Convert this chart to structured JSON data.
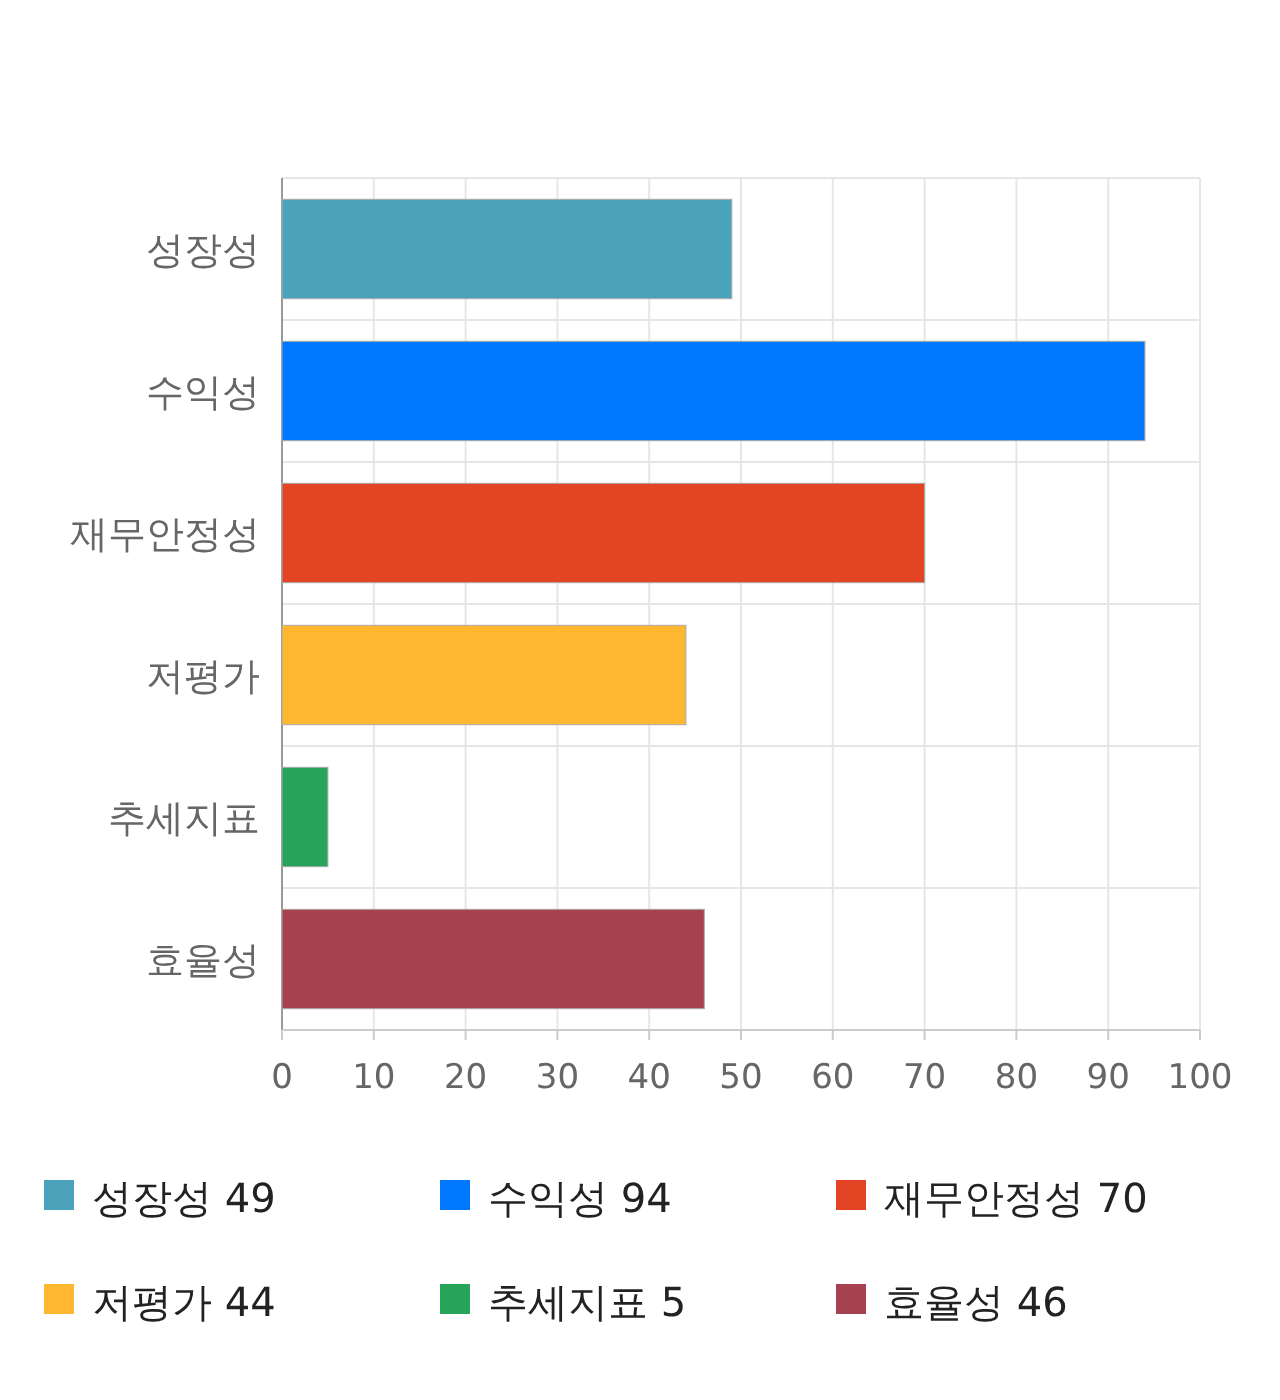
{
  "chart_data": {
    "type": "bar",
    "orientation": "horizontal",
    "categories": [
      "성장성",
      "수익성",
      "재무안정성",
      "저평가",
      "추세지표",
      "효율성"
    ],
    "series": [
      {
        "name": "성장성 49",
        "color": "#4aa3ba",
        "values": [
          49,
          null,
          null,
          null,
          null,
          null
        ]
      },
      {
        "name": "수익성 94",
        "color": "#0078ff",
        "values": [
          null,
          94,
          null,
          null,
          null,
          null
        ]
      },
      {
        "name": "재무안정성 70",
        "color": "#e34424",
        "values": [
          null,
          null,
          70,
          null,
          null,
          null
        ]
      },
      {
        "name": "저평가 44",
        "color": "#ffb732",
        "values": [
          null,
          null,
          null,
          44,
          null,
          null
        ]
      },
      {
        "name": "추세지표 5",
        "color": "#27a35a",
        "values": [
          null,
          null,
          null,
          null,
          5,
          null
        ]
      },
      {
        "name": "효율성 46",
        "color": "#a6424f",
        "values": [
          null,
          null,
          null,
          null,
          null,
          46
        ]
      }
    ],
    "xlim": [
      0,
      100
    ],
    "xticks": [
      0,
      10,
      20,
      30,
      40,
      50,
      60,
      70,
      80,
      90,
      100
    ],
    "grid": true,
    "legend": "bottom"
  }
}
